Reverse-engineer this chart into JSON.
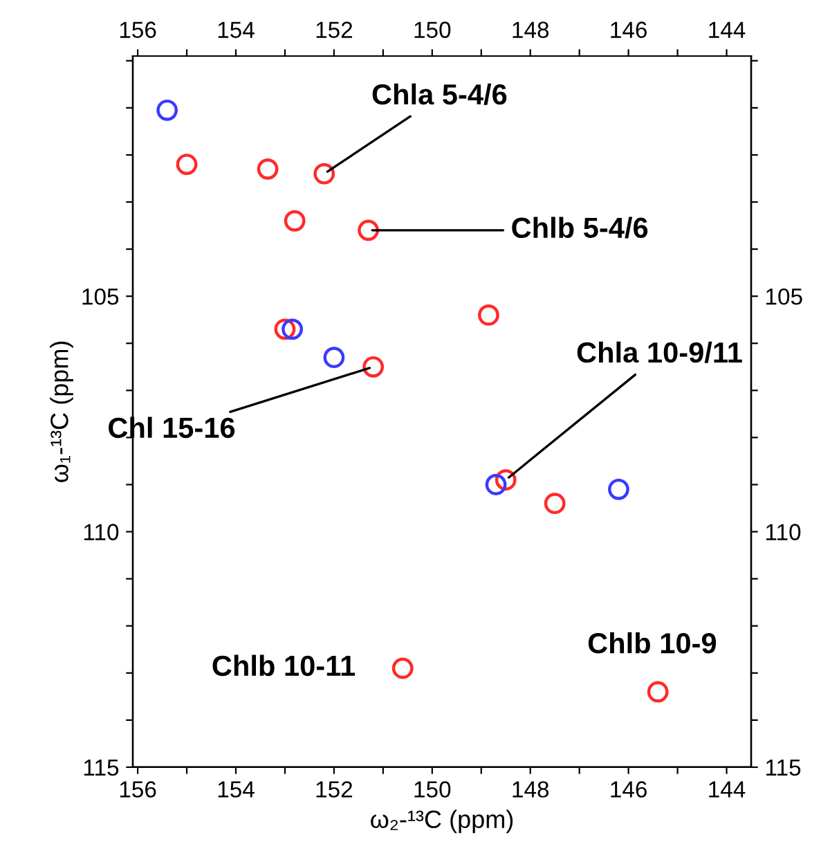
{
  "chart_data": {
    "type": "scatter",
    "xlabel": "ω₂-¹³C (ppm)",
    "ylabel": "ω₁-¹³C (ppm)",
    "xlim": [
      156.1,
      143.5
    ],
    "ylim": [
      115,
      99.9
    ],
    "xticks": [
      156,
      {
        "value": 155,
        "label": null
      },
      154,
      {
        "value": 153,
        "label": null
      },
      152,
      {
        "value": 151,
        "label": null
      },
      150,
      {
        "value": 149,
        "label": null
      },
      148,
      {
        "value": 147,
        "label": null
      },
      146,
      {
        "value": 145,
        "label": null
      },
      144
    ],
    "x2lim": [
      156.1,
      143.5
    ],
    "x2ticks": [
      156,
      {
        "value": 155,
        "label": null
      },
      154,
      {
        "value": 153,
        "label": null
      },
      152,
      {
        "value": 151,
        "label": null
      },
      150,
      {
        "value": 149,
        "label": null
      },
      148,
      {
        "value": 147,
        "label": null
      },
      146,
      {
        "value": 145,
        "label": null
      },
      144
    ],
    "yticks": [
      {
        "value": 100,
        "label": null
      },
      {
        "value": 101,
        "label": null
      },
      {
        "value": 102,
        "label": null
      },
      {
        "value": 103,
        "label": null
      },
      {
        "value": 104,
        "label": null
      },
      105,
      {
        "value": 106,
        "label": null
      },
      {
        "value": 107,
        "label": null
      },
      {
        "value": 108,
        "label": null
      },
      {
        "value": 109,
        "label": null
      },
      110,
      {
        "value": 111,
        "label": null
      },
      {
        "value": 112,
        "label": null
      },
      {
        "value": 113,
        "label": null
      },
      {
        "value": 114,
        "label": null
      },
      115
    ],
    "y2lim": [
      115,
      99.9
    ],
    "y2ticks": [
      {
        "value": 100,
        "label": null
      },
      {
        "value": 101,
        "label": null
      },
      {
        "value": 102,
        "label": null
      },
      {
        "value": 103,
        "label": null
      },
      {
        "value": 104,
        "label": null
      },
      105,
      {
        "value": 106,
        "label": null
      },
      {
        "value": 107,
        "label": null
      },
      {
        "value": 108,
        "label": null
      },
      {
        "value": 109,
        "label": null
      },
      110,
      {
        "value": 111,
        "label": null
      },
      {
        "value": 112,
        "label": null
      },
      {
        "value": 113,
        "label": null
      },
      {
        "value": 114,
        "label": null
      },
      115
    ],
    "marker": "circle",
    "grid": false,
    "legend": false,
    "series": [
      {
        "color": "#ff2a2a",
        "x": [
          155.0,
          153.35,
          152.2,
          152.8,
          151.3,
          148.85,
          153.0,
          151.2,
          148.5,
          147.5,
          150.6,
          145.4
        ],
        "values": [
          102.2,
          102.3,
          102.4,
          103.4,
          103.6,
          105.4,
          105.7,
          106.5,
          108.9,
          109.4,
          112.9,
          113.4
        ]
      },
      {
        "color": "#3a3aff",
        "x": [
          155.4,
          152.85,
          152.0,
          148.7,
          146.2
        ],
        "values": [
          101.05,
          105.7,
          106.3,
          109.0,
          109.1
        ]
      }
    ],
    "annotations": [
      {
        "text": "Chla 5-4/6",
        "x": 152.2,
        "y": 102.4
      },
      {
        "text": "Chlb 5-4/6",
        "x": 151.3,
        "y": 103.6
      },
      {
        "text": "Chl 15-16",
        "x": 151.2,
        "y": 106.5
      },
      {
        "text": "Chla 10-9/11",
        "x": 148.5,
        "y": 108.9
      },
      {
        "text": "Chlb 10-11",
        "x": 150.6,
        "y": 112.9
      },
      {
        "text": "Chlb 10-9",
        "x": 145.4,
        "y": 113.4
      }
    ]
  }
}
